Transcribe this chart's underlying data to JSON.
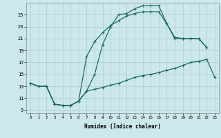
{
  "xlabel": "Humidex (Indice chaleur)",
  "bg_color": "#cce8ec",
  "grid_color": "#aaccd4",
  "line_color": "#1a6b5e",
  "xlim": [
    -0.5,
    23.5
  ],
  "ylim": [
    8.5,
    27.0
  ],
  "xtick_labels": [
    "0",
    "1",
    "2",
    "3",
    "4",
    "5",
    "6",
    "7",
    "8",
    "9",
    "10",
    "11",
    "12",
    "13",
    "14",
    "15",
    "16",
    "17",
    "18",
    "19",
    "20",
    "21",
    "22",
    "23"
  ],
  "ytick_values": [
    9,
    11,
    13,
    15,
    17,
    19,
    21,
    23,
    25
  ],
  "line1_x": [
    0,
    1,
    2,
    3,
    4,
    5,
    6,
    7,
    8,
    9,
    10,
    11,
    12,
    13,
    14,
    15,
    16,
    17,
    18,
    19,
    20,
    21,
    22,
    23
  ],
  "line1_y": [
    13.5,
    13.0,
    13.0,
    10.0,
    9.8,
    9.8,
    10.5,
    12.2,
    12.5,
    12.8,
    13.2,
    13.5,
    14.0,
    14.5,
    14.8,
    15.0,
    15.3,
    15.7,
    16.0,
    16.5,
    17.0,
    17.2,
    17.5,
    14.5
  ],
  "line2_x": [
    0,
    1,
    2,
    3,
    4,
    5,
    6,
    7,
    8,
    9,
    10,
    11,
    12,
    13,
    14,
    15,
    16,
    17,
    18,
    19,
    20,
    21,
    22
  ],
  "line2_y": [
    13.5,
    13.0,
    13.0,
    10.0,
    9.8,
    9.8,
    10.5,
    18.0,
    20.5,
    22.0,
    23.2,
    24.0,
    24.8,
    25.2,
    25.5,
    25.5,
    25.5,
    23.5,
    21.2,
    21.0,
    21.0,
    21.0,
    19.5
  ],
  "line3_x": [
    0,
    1,
    2,
    3,
    4,
    5,
    6,
    7,
    8,
    9,
    10,
    11,
    12,
    13,
    14,
    15,
    16,
    17,
    18,
    19,
    20,
    21,
    22
  ],
  "line3_y": [
    13.5,
    13.0,
    13.0,
    10.0,
    9.8,
    9.8,
    10.5,
    12.2,
    15.0,
    20.0,
    23.0,
    25.0,
    25.2,
    26.0,
    26.5,
    26.5,
    26.5,
    23.5,
    21.0,
    21.0,
    21.0,
    21.0,
    19.5
  ]
}
